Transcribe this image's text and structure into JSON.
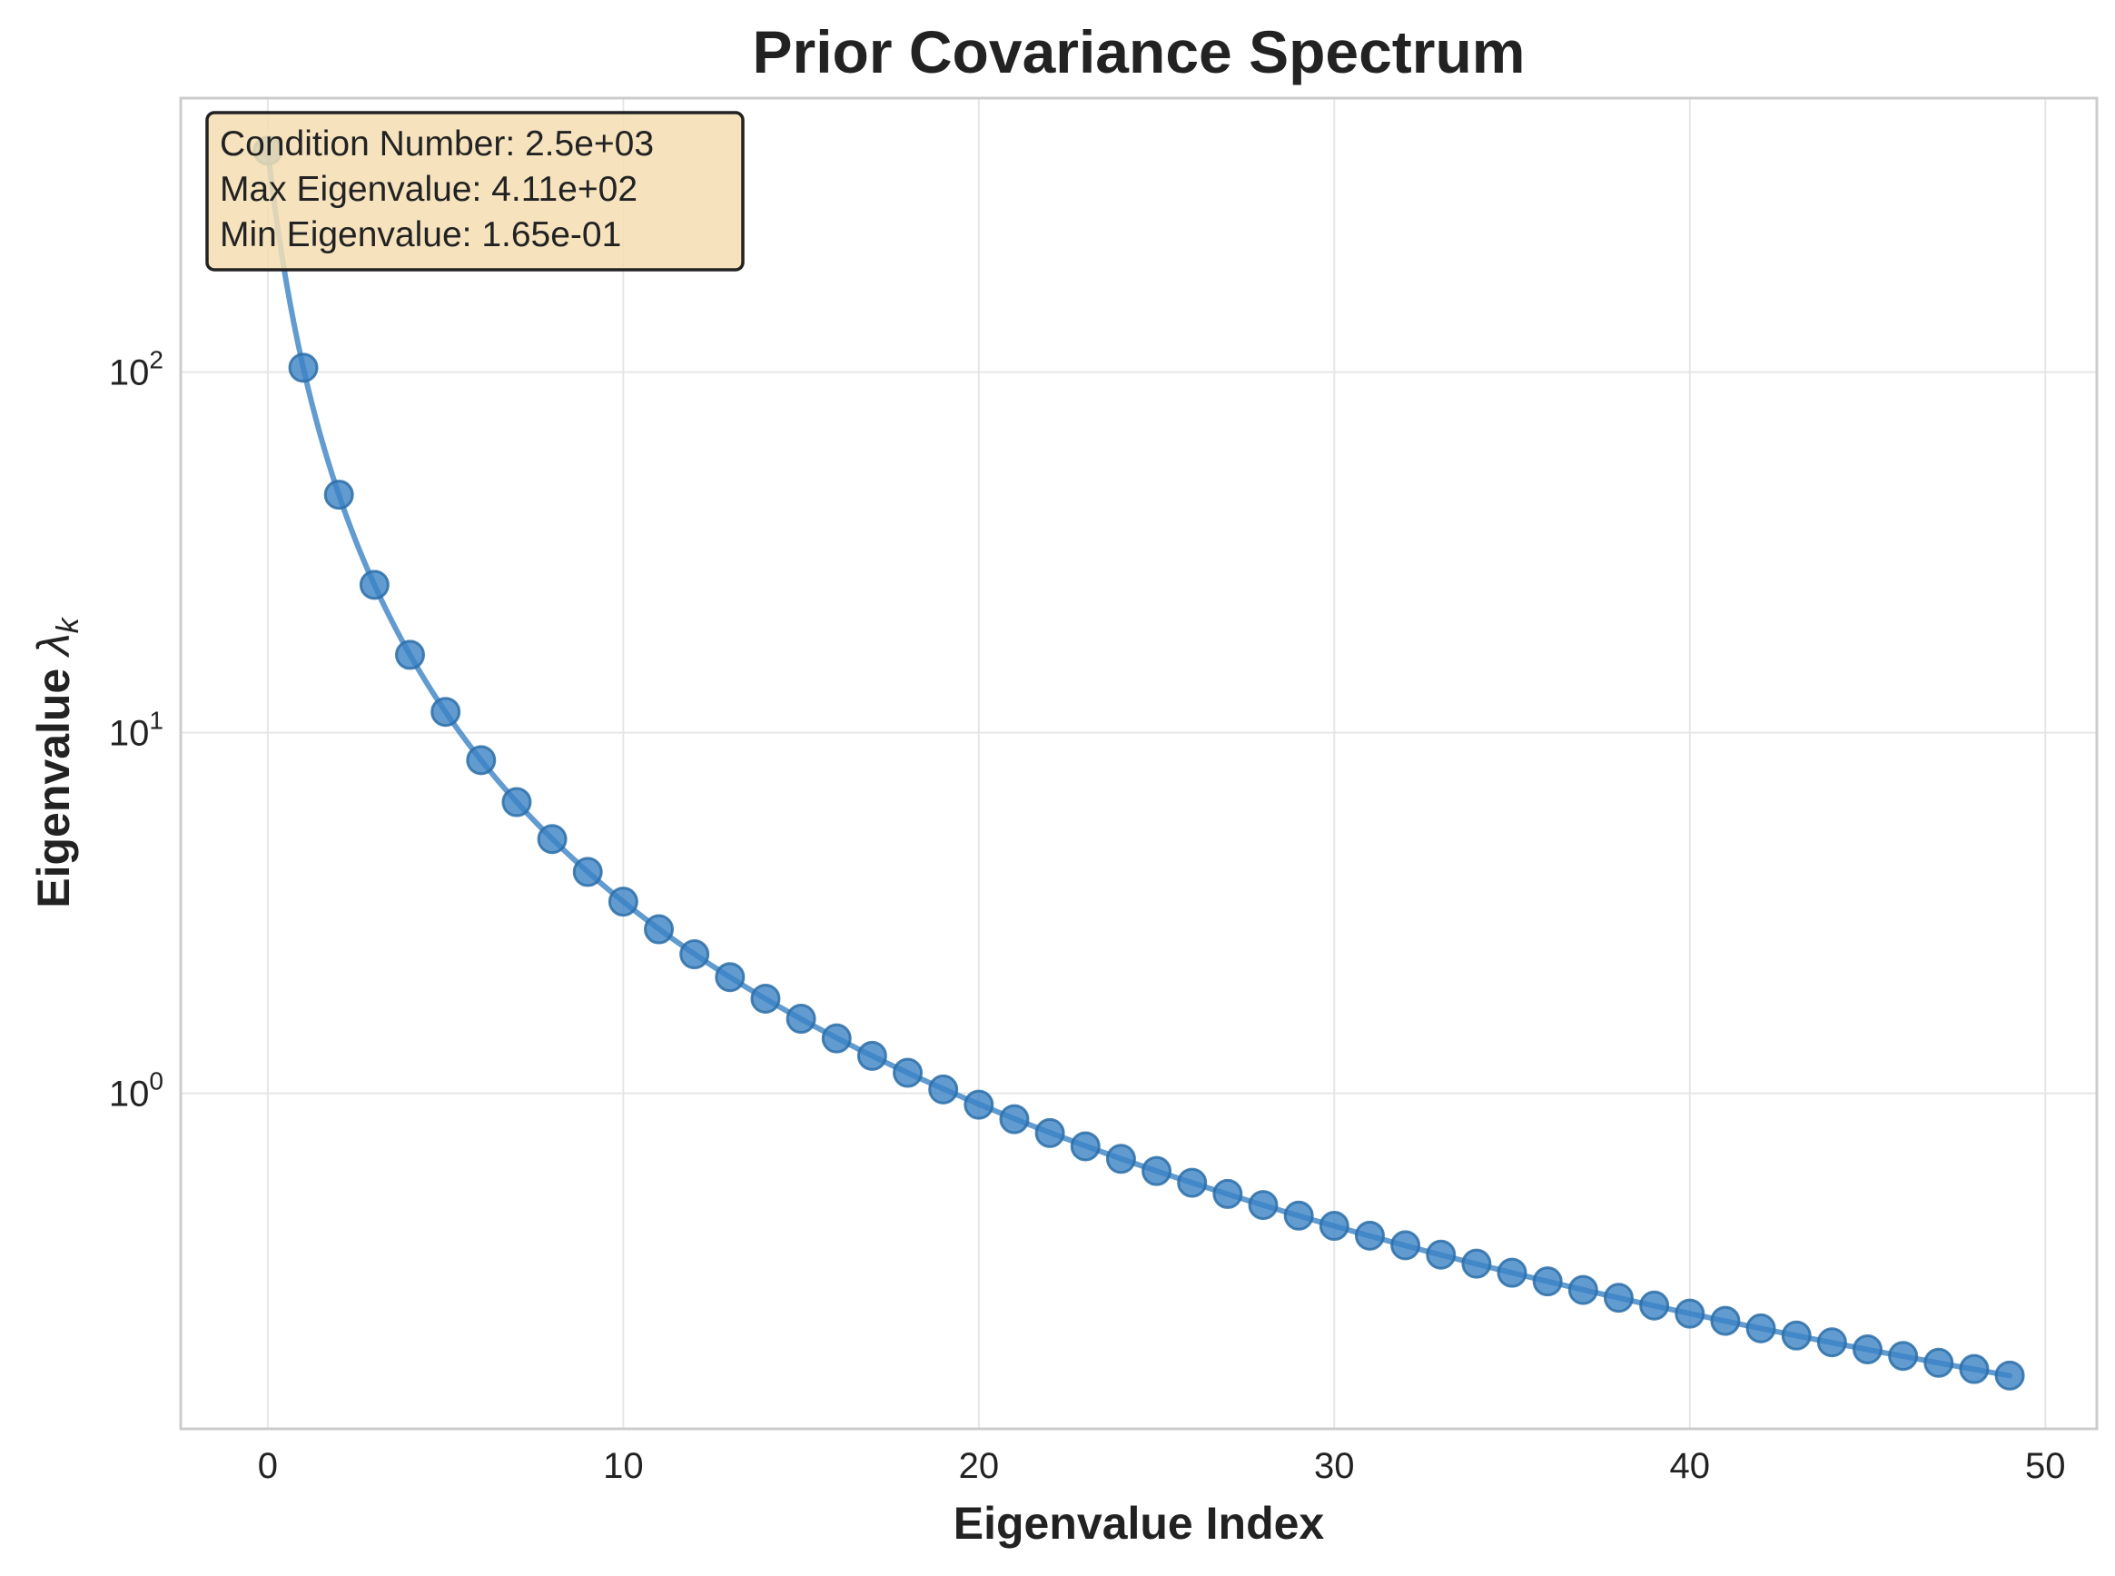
{
  "chart_data": {
    "type": "scatter",
    "title": "Prior Covariance Spectrum",
    "xlabel": "Eigenvalue Index",
    "ylabel_main": "Eigenvalue ",
    "ylabel_symbol": "λ",
    "ylabel_subscript": "k",
    "yscale": "log",
    "xlim": [
      -2.45,
      51.45
    ],
    "ylim": [
      0.1174,
      575
    ],
    "grid": true,
    "xticks": [
      0,
      10,
      20,
      30,
      40,
      50
    ],
    "yticks": [
      {
        "value": 1,
        "base": "10",
        "exp": "0"
      },
      {
        "value": 10,
        "base": "10",
        "exp": "1"
      },
      {
        "value": 100,
        "base": "10",
        "exp": "2"
      }
    ],
    "series": [
      {
        "color": "#3b82c4",
        "x": [
          0,
          1,
          2,
          3,
          4,
          5,
          6,
          7,
          8,
          9,
          10,
          11,
          12,
          13,
          14,
          15,
          16,
          17,
          18,
          19,
          20,
          21,
          22,
          23,
          24,
          25,
          26,
          27,
          28,
          29,
          30,
          31,
          32,
          33,
          34,
          35,
          36,
          37,
          38,
          39,
          40,
          41,
          42,
          43,
          44,
          45,
          46,
          47,
          48,
          49
        ],
        "y": [
          411,
          102.8,
          45.7,
          25.7,
          16.44,
          11.42,
          8.39,
          6.42,
          5.07,
          4.11,
          3.4,
          2.85,
          2.43,
          2.1,
          1.83,
          1.61,
          1.42,
          1.27,
          1.14,
          1.025,
          0.93,
          0.848,
          0.776,
          0.713,
          0.658,
          0.609,
          0.565,
          0.526,
          0.49,
          0.458,
          0.429,
          0.403,
          0.379,
          0.357,
          0.337,
          0.318,
          0.301,
          0.285,
          0.271,
          0.258,
          0.245,
          0.234,
          0.223,
          0.213,
          0.204,
          0.195,
          0.187,
          0.179,
          0.172,
          0.165
        ]
      }
    ],
    "annotation": {
      "lines": [
        "Condition Number: 2.5e+03",
        "Max Eigenvalue: 4.11e+02",
        "Min Eigenvalue: 1.65e-01"
      ],
      "placement": "top-left",
      "background": "#f5deb3",
      "border": "#222222"
    }
  }
}
